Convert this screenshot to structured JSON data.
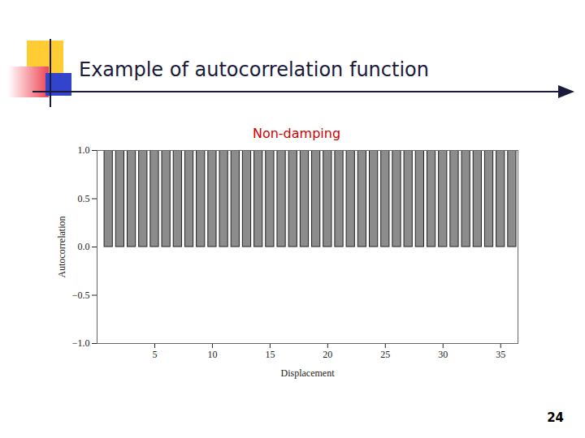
{
  "slide": {
    "title": "Example of autocorrelation function",
    "page_number": "24"
  },
  "chart_data": {
    "type": "bar",
    "title": "Non-damping",
    "x_label": "Displacement",
    "y_label": "Autocorrelation",
    "x": [
      1,
      2,
      3,
      4,
      5,
      6,
      7,
      8,
      9,
      10,
      11,
      12,
      13,
      14,
      15,
      16,
      17,
      18,
      19,
      20,
      21,
      22,
      23,
      24,
      25,
      26,
      27,
      28,
      29,
      30,
      31,
      32,
      33,
      34,
      35,
      36
    ],
    "values": [
      1,
      1,
      1,
      1,
      1,
      1,
      1,
      1,
      1,
      1,
      1,
      1,
      1,
      1,
      1,
      1,
      1,
      1,
      1,
      1,
      1,
      1,
      1,
      1,
      1,
      1,
      1,
      1,
      1,
      1,
      1,
      1,
      1,
      1,
      1,
      1
    ],
    "color": "#8c8c8c",
    "xlim": [
      0,
      36.5
    ],
    "xticks": [
      5,
      10,
      15,
      20,
      25,
      30,
      35
    ],
    "ylim": [
      -1,
      1
    ],
    "yticks": [
      {
        "value": -1,
        "label": "−1.0"
      },
      {
        "value": -0.5,
        "label": "−0.5"
      },
      {
        "value": 0,
        "label": "0.0"
      },
      {
        "value": 0.5,
        "label": "0.5"
      },
      {
        "value": 1,
        "label": "1.0"
      }
    ],
    "grid": false
  }
}
